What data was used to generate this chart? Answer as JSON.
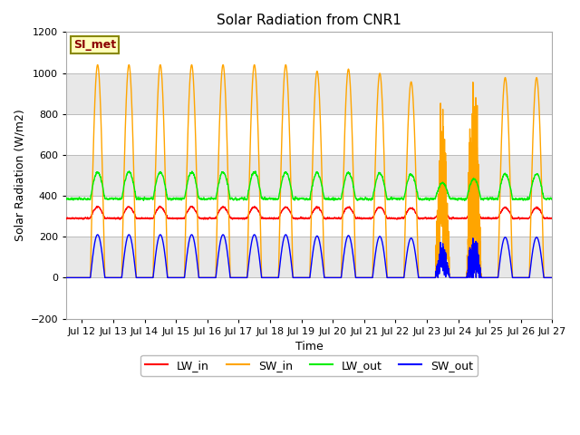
{
  "title": "Solar Radiation from CNR1",
  "xlabel": "Time",
  "ylabel": "Solar Radiation (W/m2)",
  "ylim": [
    -200,
    1200
  ],
  "x_tick_labels": [
    "Jul 12",
    "Jul 13",
    "Jul 14",
    "Jul 15",
    "Jul 16",
    "Jul 17",
    "Jul 18",
    "Jul 19",
    "Jul 20",
    "Jul 21",
    "Jul 22",
    "Jul 23",
    "Jul 24",
    "Jul 25",
    "Jul 26",
    "Jul 27"
  ],
  "x_tick_positions": [
    12,
    13,
    14,
    15,
    16,
    17,
    18,
    19,
    20,
    21,
    22,
    23,
    24,
    25,
    26,
    27
  ],
  "yticks": [
    -200,
    0,
    200,
    400,
    600,
    800,
    1000,
    1200
  ],
  "colors": {
    "LW_in": "#ff0000",
    "SW_in": "#ffa500",
    "LW_out": "#00ee00",
    "SW_out": "#0000ff"
  },
  "legend_label": "SI_met",
  "band_colors": [
    "#ffffff",
    "#e8e8e8",
    "#ffffff",
    "#e8e8e8",
    "#ffffff",
    "#e8e8e8",
    "#ffffff"
  ],
  "band_ranges": [
    [
      -200,
      0
    ],
    [
      0,
      200
    ],
    [
      200,
      400
    ],
    [
      400,
      600
    ],
    [
      600,
      800
    ],
    [
      800,
      1000
    ],
    [
      1000,
      1200
    ]
  ],
  "SW_in_peak": 1040,
  "SW_out_peak": 210,
  "LW_in_base": 290,
  "LW_in_day_amp": 55,
  "LW_out_base": 385,
  "LW_out_day_amp": 130
}
